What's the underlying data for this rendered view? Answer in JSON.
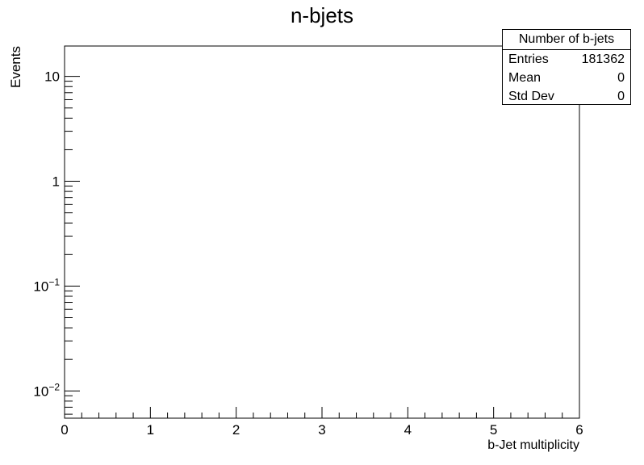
{
  "chart_data": {
    "type": "histogram",
    "title": "n-bjets",
    "xlabel": "b-Jet multiplicity",
    "ylabel": "Events",
    "xlim": [
      0,
      6
    ],
    "ylim": [
      0.0055,
      19.5
    ],
    "yscale": "log",
    "x_ticks": [
      "0",
      "1",
      "2",
      "3",
      "4",
      "5",
      "6"
    ],
    "y_ticks": [
      {
        "value": 10,
        "label": "10"
      },
      {
        "value": 1,
        "label": "1"
      },
      {
        "value": 0.1,
        "base": "10",
        "exp": "−1"
      },
      {
        "value": 0.01,
        "base": "10",
        "exp": "−2"
      }
    ],
    "series": [],
    "stats": {
      "name": "Number of b-jets",
      "rows": [
        {
          "label": "Entries",
          "value": "181362"
        },
        {
          "label": "Mean",
          "value": "0"
        },
        {
          "label": "Std Dev",
          "value": "0"
        }
      ]
    }
  }
}
